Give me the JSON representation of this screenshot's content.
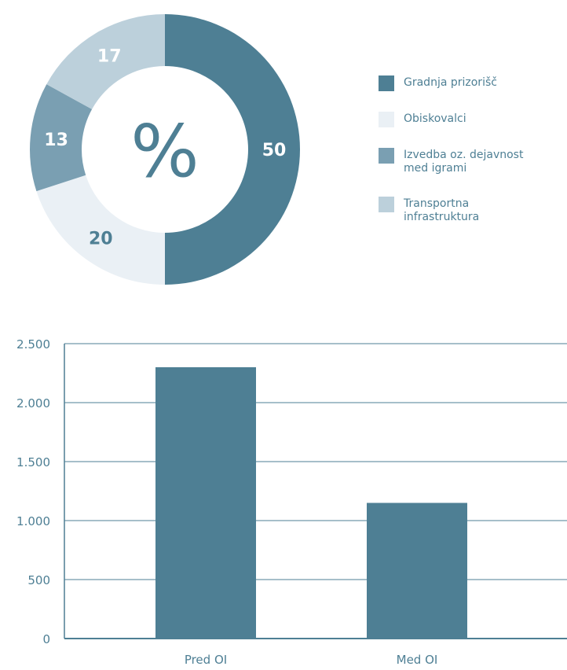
{
  "chart_data": [
    {
      "type": "pie",
      "center_label": "%",
      "slices": [
        {
          "label": "Gradnja prizorišč",
          "value": 50,
          "color": "#4e7f94",
          "text_color": "#ffffff"
        },
        {
          "label": "Obiskovalci",
          "value": 20,
          "color": "#eaf0f5",
          "text_color": "#4e7f94"
        },
        {
          "label": "Izvedba oz. dejavnost med igrami",
          "value": 13,
          "color": "#7a9fb2",
          "text_color": "#ffffff"
        },
        {
          "label": "Transportna infrastruktura",
          "value": 17,
          "color": "#bcd0db",
          "text_color": "#ffffff"
        }
      ],
      "legend_position": "right"
    },
    {
      "type": "bar",
      "categories": [
        "Pred OI",
        "Med OI"
      ],
      "values": [
        2300,
        1150
      ],
      "ylim": [
        0,
        2500
      ],
      "yticks": [
        0,
        500,
        1000,
        1500,
        2000,
        2500
      ],
      "ytick_labels": [
        "0",
        "500",
        "1.000",
        "1.500",
        "2.000",
        "2.500"
      ],
      "bar_color": "#4e7f94",
      "grid": true,
      "xlabel": "",
      "ylabel": ""
    }
  ]
}
